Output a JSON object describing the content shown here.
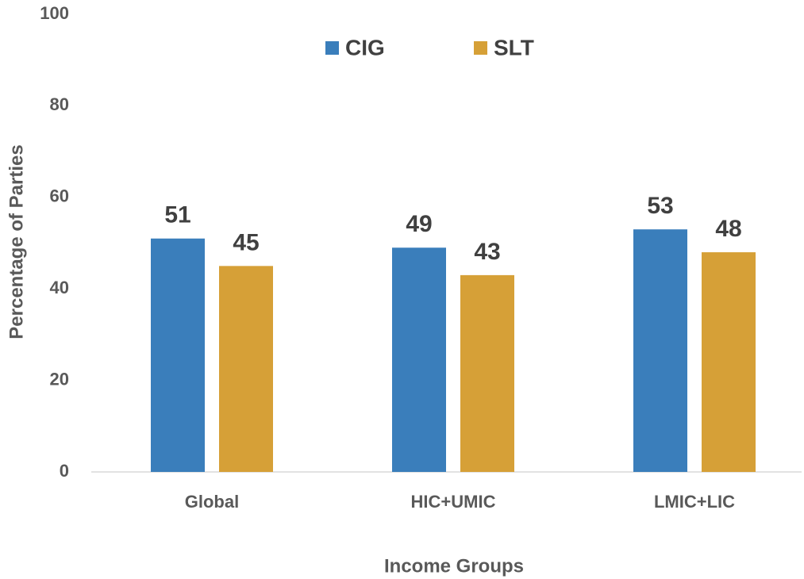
{
  "chart_data": {
    "type": "bar",
    "xlabel": "Income Groups",
    "ylabel": "Percentage of Parties",
    "categories": [
      "Global",
      "HIC+UMIC",
      "LMIC+LIC"
    ],
    "series": [
      {
        "name": "CIG",
        "color": "#3a7ebb",
        "values": [
          51,
          49,
          53
        ]
      },
      {
        "name": "SLT",
        "color": "#d6a037",
        "values": [
          45,
          43,
          48
        ]
      }
    ],
    "ylim": [
      0,
      100
    ],
    "yticks": [
      0,
      20,
      40,
      60,
      80,
      100
    ],
    "grid": false,
    "legend": "top"
  }
}
